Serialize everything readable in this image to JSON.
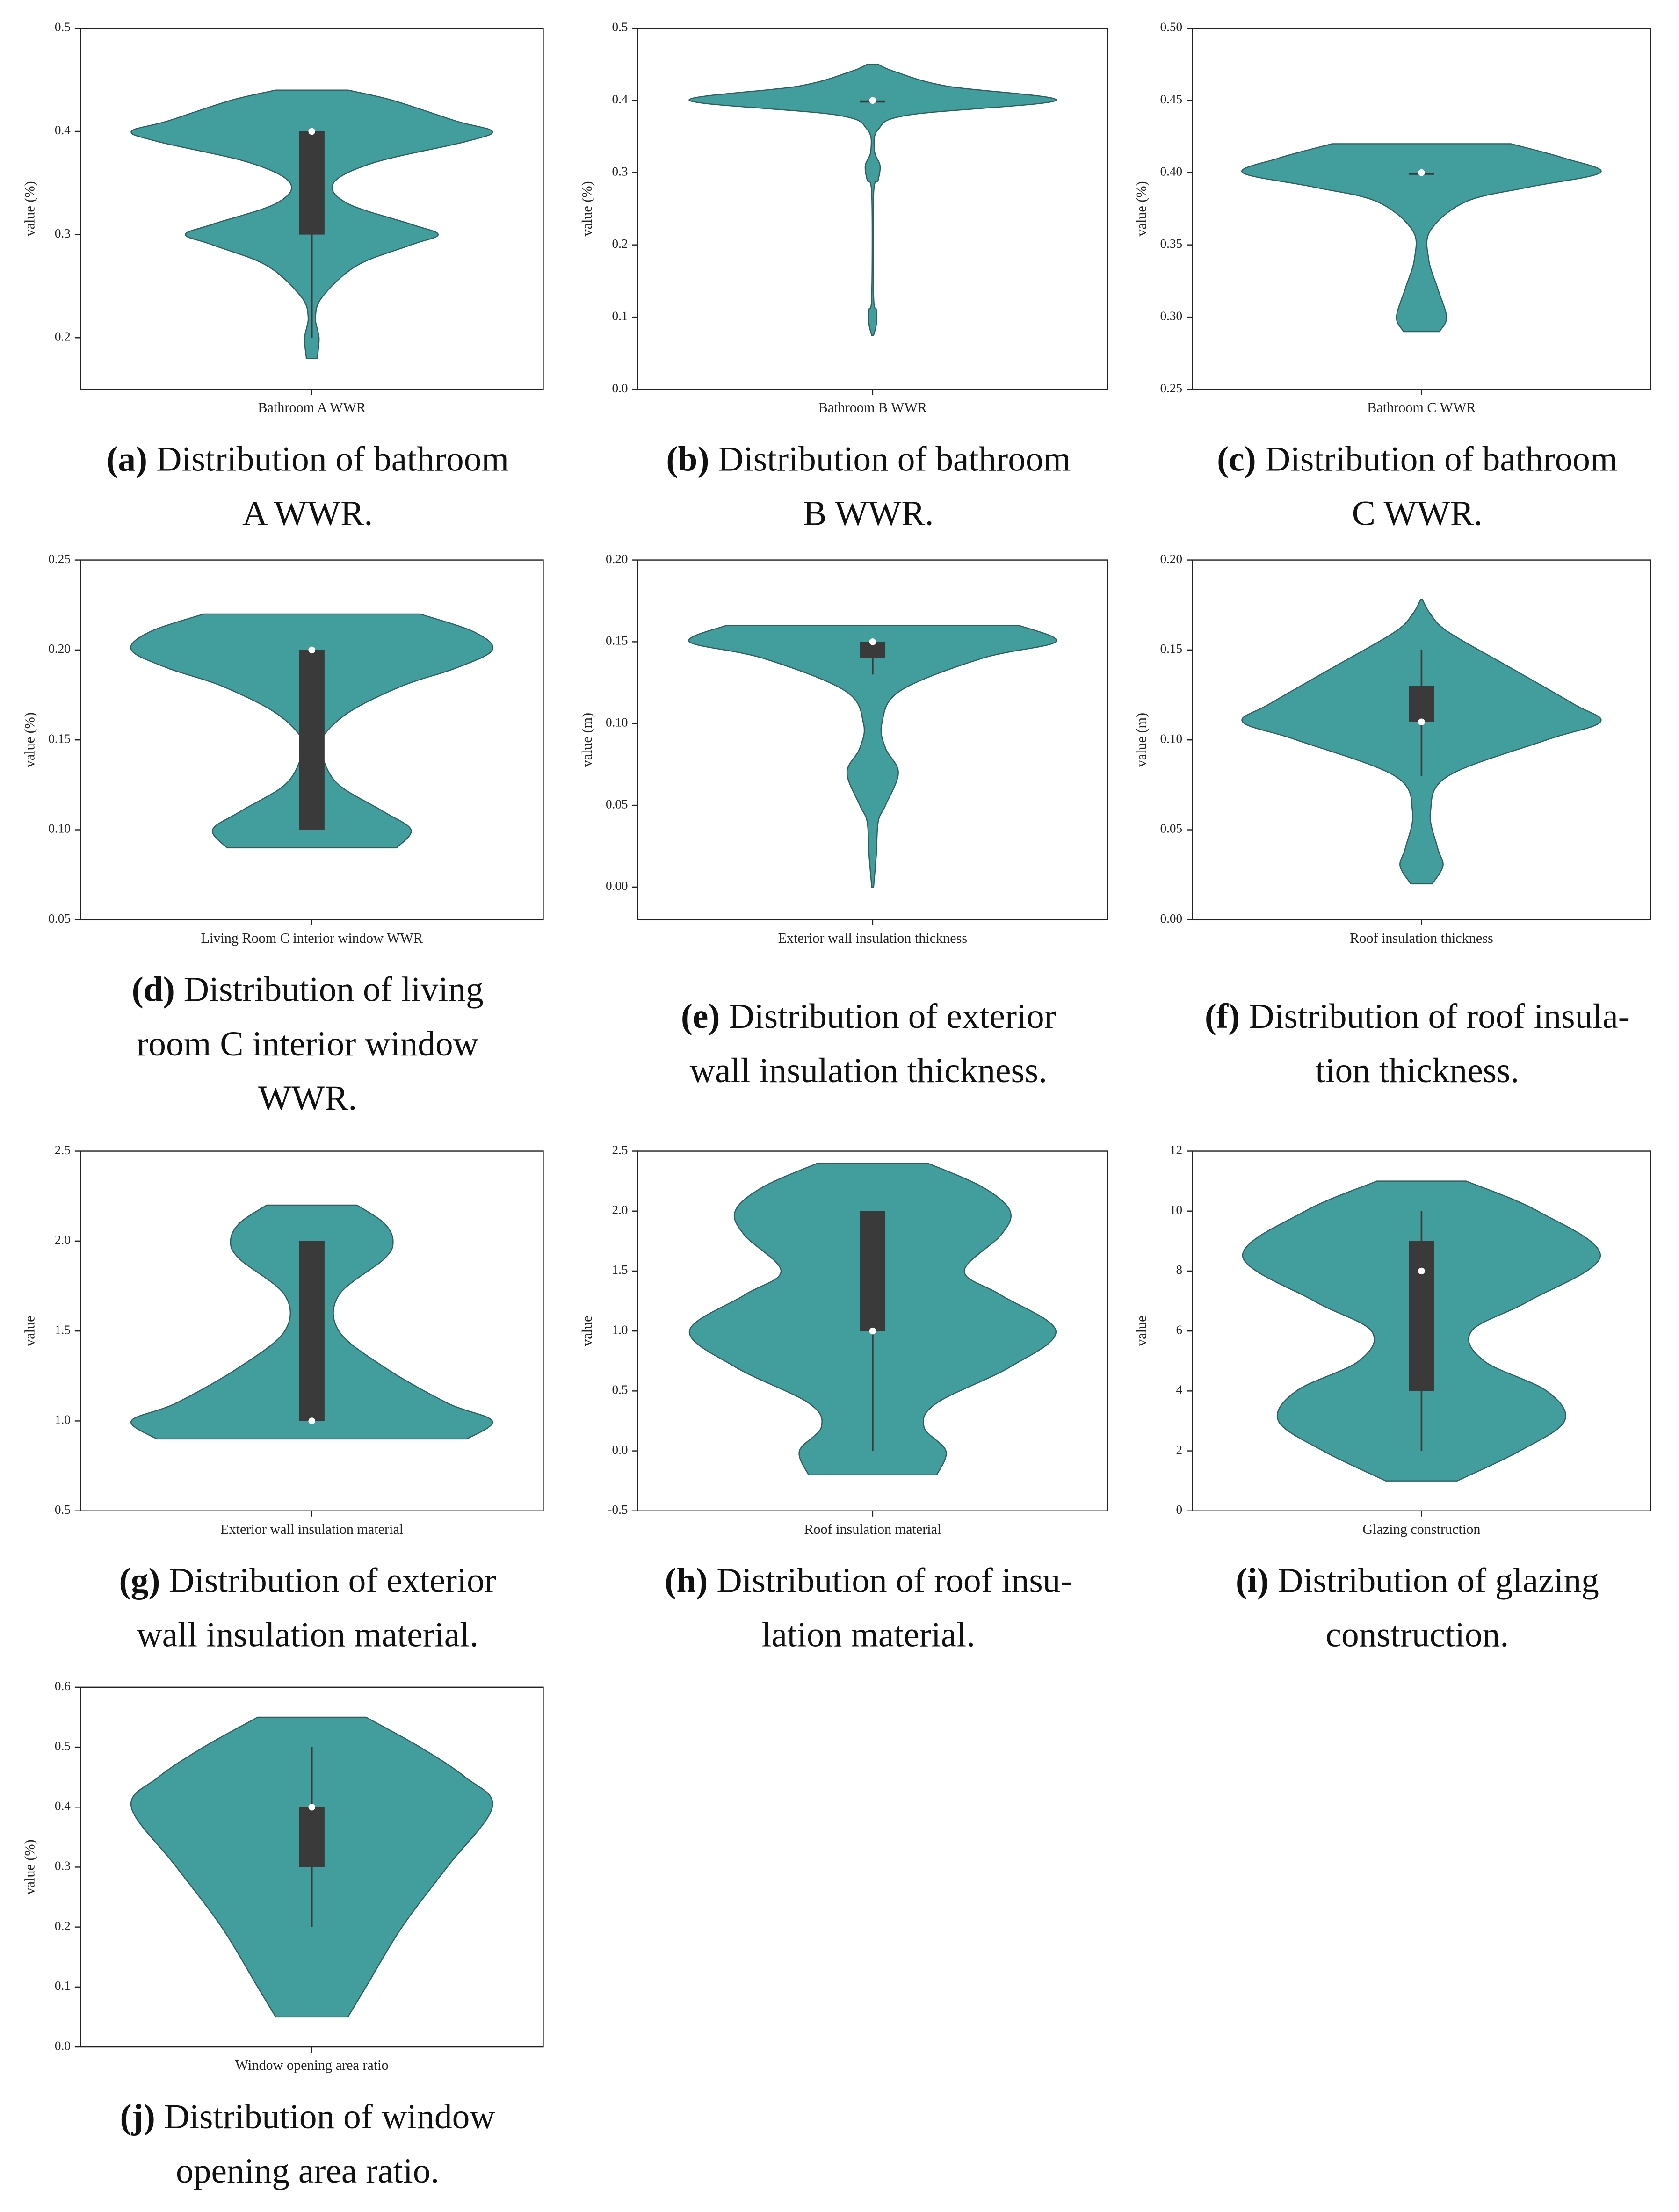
{
  "chart_data": [
    {
      "type": "violin",
      "category": "Bathroom A WWR",
      "ylabel": "value (%)",
      "caption_label": "(a)",
      "caption_lines": [
        "Distribution of bathroom",
        "A WWR."
      ],
      "ylim": [
        0.15,
        0.5
      ],
      "yticks": [
        0.2,
        0.3,
        0.4,
        0.5
      ],
      "color": "#429e9d",
      "density_y": [
        0.18,
        0.2,
        0.22,
        0.24,
        0.27,
        0.29,
        0.3,
        0.31,
        0.33,
        0.35,
        0.37,
        0.39,
        0.4,
        0.41,
        0.43,
        0.44
      ],
      "density_width": [
        0.03,
        0.04,
        0.02,
        0.06,
        0.25,
        0.55,
        0.7,
        0.55,
        0.2,
        0.12,
        0.35,
        0.85,
        1.0,
        0.8,
        0.45,
        0.2
      ],
      "quartiles": [
        0.3,
        0.4,
        0.4
      ],
      "whiskers": [
        0.2,
        0.4
      ]
    },
    {
      "type": "violin",
      "category": "Bathroom B WWR",
      "ylabel": "value (%)",
      "caption_label": "(b)",
      "caption_lines": [
        "Distribution of bathroom",
        "B WWR."
      ],
      "ylim": [
        0,
        0.5
      ],
      "yticks": [
        {
          "value": 0,
          "label": "0.0"
        },
        0.1,
        0.2,
        0.3,
        0.4,
        0.5
      ],
      "color": "#429e9d",
      "density_y": [
        0.075,
        0.09,
        0.11,
        0.13,
        0.27,
        0.29,
        0.31,
        0.33,
        0.36,
        0.38,
        0.4,
        0.42,
        0.44,
        0.45
      ],
      "density_width": [
        0.005,
        0.02,
        0.02,
        0.005,
        0.005,
        0.03,
        0.04,
        0.01,
        0.03,
        0.2,
        1.0,
        0.4,
        0.12,
        0.03
      ],
      "quartiles": [
        0.4,
        0.4,
        0.4
      ],
      "whiskers": [
        0.4,
        0.4
      ]
    },
    {
      "type": "violin",
      "category": "Bathroom C WWR",
      "ylabel": "value (%)",
      "caption_label": "(c)",
      "caption_lines": [
        "Distribution of bathroom",
        "C WWR."
      ],
      "ylim": [
        0.25,
        0.5
      ],
      "yticks": [
        {
          "value": 0.25,
          "label": "0.25"
        },
        {
          "value": 0.3,
          "label": "0.30"
        },
        {
          "value": 0.35,
          "label": "0.35"
        },
        {
          "value": 0.4,
          "label": "0.40"
        },
        {
          "value": 0.45,
          "label": "0.45"
        },
        {
          "value": 0.5,
          "label": "0.50"
        }
      ],
      "color": "#429e9d",
      "density_y": [
        0.29,
        0.3,
        0.32,
        0.34,
        0.36,
        0.38,
        0.39,
        0.4,
        0.41,
        0.42
      ],
      "density_width": [
        0.1,
        0.14,
        0.09,
        0.04,
        0.05,
        0.25,
        0.6,
        1.0,
        0.8,
        0.5
      ],
      "quartiles": [
        0.4,
        0.4,
        0.4
      ],
      "whiskers": [
        0.4,
        0.4
      ]
    },
    {
      "type": "violin",
      "category": "Living Room C interior window WWR",
      "ylabel": "value (%)",
      "caption_label": "(d)",
      "caption_lines": [
        "Distribution of living",
        "room C interior window",
        "WWR."
      ],
      "ylim": [
        0.05,
        0.25
      ],
      "yticks": [
        {
          "value": 0.05,
          "label": "0.05"
        },
        {
          "value": 0.1,
          "label": "0.10"
        },
        {
          "value": 0.15,
          "label": "0.15"
        },
        {
          "value": 0.2,
          "label": "0.20"
        },
        {
          "value": 0.25,
          "label": "0.25"
        }
      ],
      "color": "#429e9d",
      "density_y": [
        0.09,
        0.1,
        0.11,
        0.125,
        0.14,
        0.15,
        0.165,
        0.18,
        0.19,
        0.2,
        0.21,
        0.22
      ],
      "density_width": [
        0.47,
        0.55,
        0.4,
        0.15,
        0.06,
        0.05,
        0.2,
        0.5,
        0.8,
        1.0,
        0.9,
        0.6
      ],
      "quartiles": [
        0.1,
        0.2,
        0.2
      ],
      "whiskers": [
        0.1,
        0.2
      ]
    },
    {
      "type": "violin",
      "category": "Exterior wall insulation thickness",
      "ylabel": "value (m)",
      "caption_label": "(e)",
      "caption_lines": [
        "Distribution of exterior",
        "wall insulation thickness."
      ],
      "ylim": [
        -0.02,
        0.2
      ],
      "yticks": [
        {
          "value": 0,
          "label": "0.00"
        },
        {
          "value": 0.05,
          "label": "0.05"
        },
        {
          "value": 0.1,
          "label": "0.10"
        },
        {
          "value": 0.15,
          "label": "0.15"
        },
        {
          "value": 0.2,
          "label": "0.20"
        }
      ],
      "color": "#429e9d",
      "density_y": [
        0,
        0.02,
        0.04,
        0.05,
        0.07,
        0.085,
        0.1,
        0.12,
        0.14,
        0.15,
        0.16
      ],
      "density_width": [
        0.005,
        0.02,
        0.03,
        0.07,
        0.14,
        0.07,
        0.05,
        0.15,
        0.6,
        1.0,
        0.8
      ],
      "quartiles": [
        0.14,
        0.15,
        0.15
      ],
      "whiskers": [
        0.13,
        0.15
      ]
    },
    {
      "type": "violin",
      "category": "Roof insulation thickness",
      "ylabel": "value (m)",
      "caption_label": "(f)",
      "caption_lines": [
        "Distribution of roof insula-",
        "tion thickness."
      ],
      "ylim": [
        0,
        0.2
      ],
      "yticks": [
        {
          "value": 0,
          "label": "0.00"
        },
        {
          "value": 0.05,
          "label": "0.05"
        },
        {
          "value": 0.1,
          "label": "0.10"
        },
        {
          "value": 0.15,
          "label": "0.15"
        },
        {
          "value": 0.2,
          "label": "0.20"
        }
      ],
      "color": "#429e9d",
      "density_y": [
        0.02,
        0.03,
        0.04,
        0.06,
        0.08,
        0.1,
        0.11,
        0.12,
        0.14,
        0.16,
        0.17,
        0.178
      ],
      "density_width": [
        0.06,
        0.12,
        0.09,
        0.05,
        0.15,
        0.7,
        1.0,
        0.85,
        0.5,
        0.15,
        0.05,
        0.005
      ],
      "quartiles": [
        0.11,
        0.11,
        0.13
      ],
      "whiskers": [
        0.08,
        0.15
      ]
    },
    {
      "type": "violin",
      "category": "Exterior wall insulation material",
      "ylabel": "value",
      "caption_label": "(g)",
      "caption_lines": [
        "Distribution of exterior",
        "wall insulation material."
      ],
      "ylim": [
        0.5,
        2.5
      ],
      "yticks": [
        0.5,
        {
          "value": 1,
          "label": "1.0"
        },
        1.5,
        {
          "value": 2,
          "label": "2.0"
        },
        2.5
      ],
      "color": "#429e9d",
      "density_y": [
        0.9,
        1.0,
        1.1,
        1.3,
        1.5,
        1.7,
        1.9,
        2.0,
        2.1,
        2.2
      ],
      "density_width": [
        0.86,
        1.0,
        0.75,
        0.4,
        0.15,
        0.15,
        0.4,
        0.45,
        0.4,
        0.25
      ],
      "quartiles": [
        1,
        1,
        2
      ],
      "whiskers": [
        1,
        2
      ]
    },
    {
      "type": "violin",
      "category": "Roof insulation material",
      "ylabel": "value",
      "caption_label": "(h)",
      "caption_lines": [
        "Distribution of roof insu-",
        "lation material."
      ],
      "ylim": [
        -0.5,
        2.5
      ],
      "yticks": [
        -0.5,
        {
          "value": 0,
          "label": "0.0"
        },
        0.5,
        {
          "value": 1,
          "label": "1.0"
        },
        1.5,
        {
          "value": 2,
          "label": "2.0"
        },
        2.5
      ],
      "color": "#429e9d",
      "density_y": [
        -0.2,
        0,
        0.2,
        0.4,
        0.7,
        1.0,
        1.3,
        1.5,
        1.8,
        2.0,
        2.2,
        2.4
      ],
      "density_width": [
        0.35,
        0.4,
        0.28,
        0.35,
        0.75,
        1.0,
        0.7,
        0.5,
        0.7,
        0.75,
        0.6,
        0.3
      ],
      "quartiles": [
        1,
        1,
        2
      ],
      "whiskers": [
        0,
        2
      ]
    },
    {
      "type": "violin",
      "category": "Glazing construction",
      "ylabel": "value",
      "caption_label": "(i)",
      "caption_lines": [
        "Distribution of glazing",
        "construction."
      ],
      "ylim": [
        0,
        12
      ],
      "yticks": [
        0,
        2,
        4,
        6,
        8,
        10,
        12
      ],
      "color": "#429e9d",
      "density_y": [
        1,
        2,
        3,
        4,
        5,
        6,
        7,
        8.5,
        10,
        11
      ],
      "density_width": [
        0.2,
        0.55,
        0.8,
        0.7,
        0.35,
        0.28,
        0.6,
        1.0,
        0.65,
        0.25
      ],
      "quartiles": [
        4,
        8,
        9
      ],
      "whiskers": [
        2,
        10
      ]
    },
    {
      "type": "violin",
      "category": "Window opening area ratio",
      "ylabel": "value (%)",
      "caption_label": "(j)",
      "caption_lines": [
        "Distribution of window",
        "opening area ratio."
      ],
      "ylim": [
        0,
        0.6
      ],
      "yticks": [
        {
          "value": 0,
          "label": "0.0"
        },
        0.1,
        0.2,
        0.3,
        0.4,
        0.5,
        0.6
      ],
      "color": "#429e9d",
      "density_y": [
        0.05,
        0.1,
        0.2,
        0.3,
        0.4,
        0.45,
        0.5,
        0.55
      ],
      "density_width": [
        0.2,
        0.3,
        0.5,
        0.75,
        1.0,
        0.85,
        0.6,
        0.3
      ],
      "quartiles": [
        0.3,
        0.4,
        0.4
      ],
      "whiskers": [
        0.2,
        0.5
      ]
    }
  ]
}
